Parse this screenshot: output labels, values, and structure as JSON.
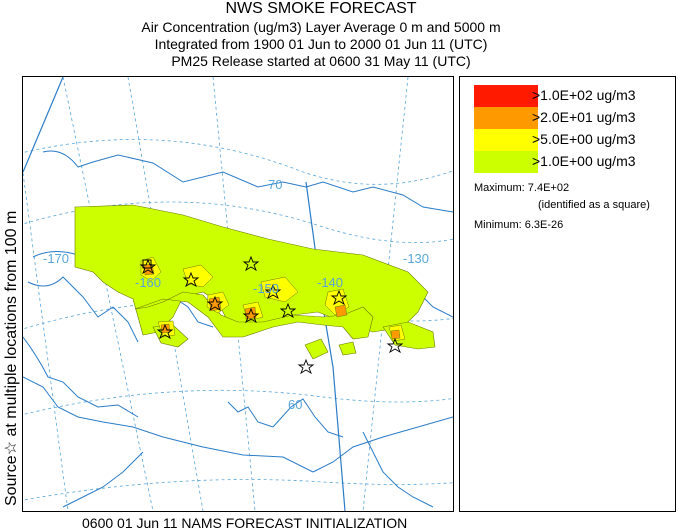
{
  "header": {
    "title": "NWS SMOKE FORECAST",
    "line2": "Air Concentration (ug/m3) Layer Average     0 m and  5000 m",
    "line3": "Integrated from 1900 01 Jun to 2000 01 Jun 11 (UTC)",
    "line4": "PM25 Release started at 0600 31 May 11 (UTC)"
  },
  "side_label": "Source☆ at multiple locations   from   100 m",
  "legend": {
    "items": [
      {
        "label": ">1.0E+02 ug/m3",
        "color": "#ff1a00"
      },
      {
        "label": ">2.0E+01 ug/m3",
        "color": "#ff9900"
      },
      {
        "label": ">5.0E+00 ug/m3",
        "color": "#ffff00"
      },
      {
        "label": ">1.0E+00 ug/m3",
        "color": "#ccff00"
      }
    ],
    "maximum": "Maximum: 7.4E+02",
    "maximum_note": "(identified as a square)",
    "minimum": "Minimum: 6.3E-26"
  },
  "map": {
    "graticule_labels": [
      "70",
      "-170",
      "-160",
      "-150",
      "-140",
      "-130",
      "60"
    ],
    "grid_color": "#5aa6d6",
    "coast_color": "#2b7cc8"
  },
  "footer": "0600 01 Jun 11 NAMS FORECAST INITIALIZATION"
}
